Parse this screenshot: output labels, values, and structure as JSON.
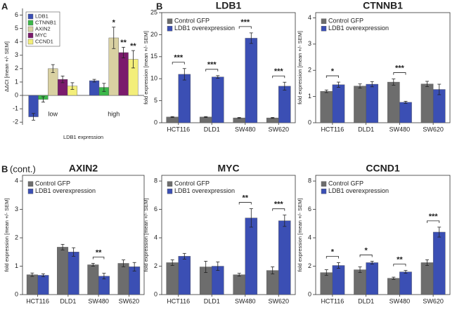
{
  "chart_data": [
    {
      "type": "bar",
      "panel_label": "A",
      "ylabel": "ΔΔCt [mean +/- SEM]",
      "xlabel": "LDB1 expression",
      "categories": [
        "low",
        "high"
      ],
      "ylim": [
        -2.2,
        6.5
      ],
      "yticks": [
        -2,
        -1,
        0,
        1,
        2,
        3,
        4,
        5,
        6
      ],
      "series": [
        {
          "name": "LDB1",
          "color": "#3b4fb4",
          "values": [
            -1.6,
            1.1
          ],
          "errors": [
            0.25,
            0.1
          ],
          "significance": [
            null,
            null
          ]
        },
        {
          "name": "CTNNB1",
          "color": "#3cb84a",
          "values": [
            -0.3,
            0.6
          ],
          "errors": [
            0.2,
            0.3
          ],
          "significance": [
            null,
            null
          ]
        },
        {
          "name": "AXIN2",
          "color": "#d9d1a2",
          "values": [
            2.0,
            4.3
          ],
          "errors": [
            0.3,
            0.8
          ],
          "significance": [
            null,
            "*"
          ]
        },
        {
          "name": "MYC",
          "color": "#7b1b6c",
          "values": [
            1.2,
            3.2
          ],
          "errors": [
            0.25,
            0.4
          ],
          "significance": [
            null,
            "**"
          ]
        },
        {
          "name": "CCND1",
          "color": "#f3ee7a",
          "values": [
            0.7,
            2.7
          ],
          "errors": [
            0.25,
            0.65
          ],
          "significance": [
            null,
            "**"
          ]
        }
      ]
    },
    {
      "type": "bar",
      "panel_label": "B",
      "title": "LDB1",
      "ylabel": "fold expression [mean +/- SEM]",
      "categories": [
        "HCT116",
        "DLD1",
        "SW480",
        "SW620"
      ],
      "ylim": [
        0,
        25
      ],
      "yticks": [
        0,
        5,
        10,
        15,
        20,
        25
      ],
      "significance": [
        "***",
        "***",
        "***",
        "***"
      ],
      "series": [
        {
          "name": "Control GFP",
          "color": "#6d6d6d",
          "values": [
            1.3,
            1.3,
            1.1,
            1.1
          ],
          "errors": [
            0.1,
            0.1,
            0.1,
            0.1
          ]
        },
        {
          "name": "LDB1 overexpression",
          "color": "#3b4fb4",
          "values": [
            11,
            10.4,
            19.2,
            8.3
          ],
          "errors": [
            1.3,
            0.3,
            1.2,
            0.9
          ]
        }
      ]
    },
    {
      "type": "bar",
      "title": "CTNNB1",
      "ylabel": "fold expression [mean +/- SEM]",
      "categories": [
        "HCT116",
        "DLD1",
        "SW480",
        "SW620"
      ],
      "ylim": [
        0,
        4.2
      ],
      "yticks": [
        0,
        1,
        2,
        3,
        4
      ],
      "significance": [
        "*",
        null,
        "***",
        null
      ],
      "series": [
        {
          "name": "Control GFP",
          "color": "#6d6d6d",
          "values": [
            1.2,
            1.4,
            1.55,
            1.48
          ],
          "errors": [
            0.05,
            0.08,
            0.12,
            0.1
          ]
        },
        {
          "name": "LDB1 overexpression",
          "color": "#3b4fb4",
          "values": [
            1.45,
            1.47,
            0.78,
            1.27
          ],
          "errors": [
            0.1,
            0.1,
            0.04,
            0.2
          ]
        }
      ]
    },
    {
      "type": "bar",
      "panel_label": "B",
      "panel_note": "(cont.)",
      "title": "AXIN2",
      "ylabel": "fold expression [mean +/- SEM]",
      "categories": [
        "HCT116",
        "DLD1",
        "SW480",
        "SW620"
      ],
      "ylim": [
        0,
        4.2
      ],
      "yticks": [
        0,
        1,
        2,
        3,
        4
      ],
      "significance": [
        null,
        null,
        "**",
        null
      ],
      "series": [
        {
          "name": "Control GFP",
          "color": "#6d6d6d",
          "values": [
            0.7,
            1.67,
            1.05,
            1.1
          ],
          "errors": [
            0.06,
            0.1,
            0.05,
            0.12
          ]
        },
        {
          "name": "LDB1 overexpression",
          "color": "#3b4fb4",
          "values": [
            0.68,
            1.5,
            0.65,
            0.98
          ],
          "errors": [
            0.05,
            0.15,
            0.1,
            0.15
          ]
        }
      ]
    },
    {
      "type": "bar",
      "title": "MYC",
      "ylabel": "fold expression [mean +/- SEM]",
      "categories": [
        "HCT116",
        "DLD1",
        "SW480",
        "SW620"
      ],
      "ylim": [
        0,
        8.4
      ],
      "yticks": [
        0,
        2,
        4,
        6,
        8
      ],
      "significance": [
        null,
        null,
        "**",
        "***"
      ],
      "series": [
        {
          "name": "Control GFP",
          "color": "#6d6d6d",
          "values": [
            2.25,
            1.95,
            1.4,
            1.7
          ],
          "errors": [
            0.2,
            0.4,
            0.1,
            0.25
          ]
        },
        {
          "name": "LDB1 overexpression",
          "color": "#3b4fb4",
          "values": [
            2.7,
            2.0,
            5.4,
            5.2
          ],
          "errors": [
            0.2,
            0.3,
            0.65,
            0.4
          ]
        }
      ]
    },
    {
      "type": "bar",
      "title": "CCND1",
      "ylabel": "fold expression [mean +/- SEM]",
      "categories": [
        "HCT116",
        "DLD1",
        "SW480",
        "SW620"
      ],
      "ylim": [
        0,
        8.4
      ],
      "yticks": [
        0,
        2,
        4,
        6,
        8
      ],
      "significance": [
        "*",
        "*",
        "**",
        "***"
      ],
      "series": [
        {
          "name": "Control GFP",
          "color": "#6d6d6d",
          "values": [
            1.55,
            1.75,
            1.15,
            2.25
          ],
          "errors": [
            0.2,
            0.2,
            0.08,
            0.2
          ]
        },
        {
          "name": "LDB1 overexpression",
          "color": "#3b4fb4",
          "values": [
            2.05,
            2.25,
            1.6,
            4.4
          ],
          "errors": [
            0.2,
            0.1,
            0.1,
            0.35
          ]
        }
      ]
    }
  ]
}
